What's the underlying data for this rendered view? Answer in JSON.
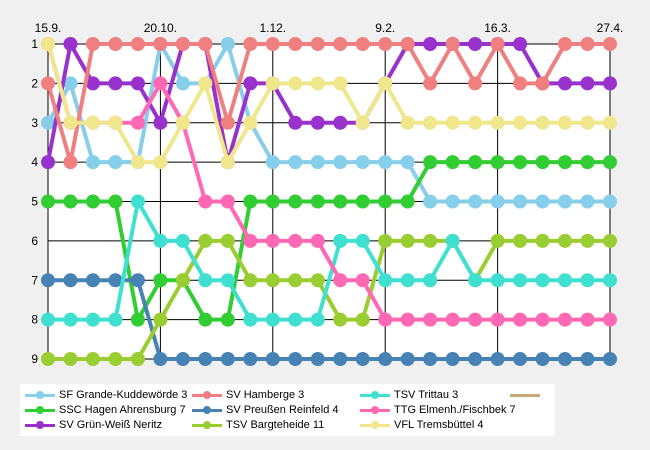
{
  "chart_data": {
    "type": "line",
    "x_tick_labels": [
      "15.9.",
      "20.10.",
      "1.12.",
      "9.2.",
      "16.3.",
      "27.4."
    ],
    "x_tick_positions": [
      0,
      5,
      10,
      15,
      20,
      25
    ],
    "y_tick_labels": [
      "1",
      "2",
      "3",
      "4",
      "5",
      "6",
      "7",
      "8",
      "9"
    ],
    "ylim": [
      1,
      9
    ],
    "y_inverted": true,
    "grid": true,
    "legend_position": "bottom",
    "series": [
      {
        "name": "SF Grande-Kuddewörde 3",
        "color": "#87ceeb",
        "values": [
          3,
          2,
          4,
          4,
          4,
          1,
          2,
          2,
          1,
          3,
          4,
          4,
          4,
          4,
          4,
          4,
          4,
          5,
          5,
          5,
          5,
          5,
          5,
          5,
          5,
          5
        ]
      },
      {
        "name": "SSC Hagen Ahrensburg 7",
        "color": "#32cd32",
        "values": [
          5,
          5,
          5,
          5,
          8,
          7,
          7,
          8,
          8,
          5,
          5,
          5,
          5,
          5,
          5,
          5,
          5,
          4,
          4,
          4,
          4,
          4,
          4,
          4,
          4,
          4
        ]
      },
      {
        "name": "SV Grün-Weiß Neritz",
        "color": "#9932cc",
        "values": [
          4,
          1,
          2,
          2,
          2,
          3,
          1,
          1,
          4,
          2,
          2,
          3,
          3,
          3,
          3,
          2,
          1,
          1,
          1,
          1,
          1,
          1,
          2,
          2,
          2,
          2
        ]
      },
      {
        "name": "SV Hamberge 3",
        "color": "#f08080",
        "values": [
          2,
          4,
          1,
          1,
          1,
          1,
          1,
          1,
          3,
          1,
          1,
          1,
          1,
          1,
          1,
          1,
          1,
          2,
          1,
          2,
          1,
          2,
          2,
          1,
          1,
          1
        ]
      },
      {
        "name": "SV Preußen Reinfeld 4",
        "color": "#4682b4",
        "values": [
          7,
          7,
          7,
          7,
          7,
          9,
          9,
          9,
          9,
          9,
          9,
          9,
          9,
          9,
          9,
          9,
          9,
          9,
          9,
          9,
          9,
          9,
          9,
          9,
          9,
          9
        ]
      },
      {
        "name": "TSV Bargteheide 11",
        "color": "#9acd32",
        "values": [
          9,
          9,
          9,
          9,
          9,
          8,
          7,
          6,
          6,
          7,
          7,
          7,
          7,
          8,
          8,
          6,
          6,
          6,
          6,
          7,
          6,
          6,
          6,
          6,
          6,
          6
        ]
      },
      {
        "name": "TSV Trittau 3",
        "color": "#40e0d0",
        "values": [
          8,
          8,
          8,
          8,
          5,
          6,
          6,
          7,
          7,
          8,
          8,
          8,
          8,
          6,
          6,
          7,
          7,
          7,
          6,
          7,
          7,
          7,
          7,
          7,
          7,
          7
        ]
      },
      {
        "name": "TTG Elmenh./Fischbek 7",
        "color": "#ff69b4",
        "values": [
          1,
          3,
          3,
          3,
          3,
          2,
          3,
          5,
          5,
          6,
          6,
          6,
          6,
          7,
          7,
          8,
          8,
          8,
          8,
          8,
          8,
          8,
          8,
          8,
          8,
          8
        ]
      },
      {
        "name": "VFL Tremsbüttel 4",
        "color": "#f0e68c",
        "values": [
          1,
          3,
          3,
          3,
          4,
          4,
          3,
          2,
          4,
          3,
          2,
          2,
          2,
          2,
          3,
          2,
          3,
          3,
          3,
          3,
          3,
          3,
          3,
          3,
          3,
          3
        ]
      },
      {
        "name": "",
        "color": "#c8a87a",
        "values": []
      }
    ]
  }
}
